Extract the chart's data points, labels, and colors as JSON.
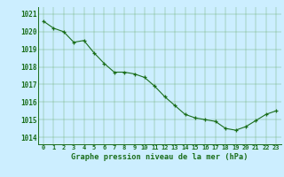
{
  "x": [
    0,
    1,
    2,
    3,
    4,
    5,
    6,
    7,
    8,
    9,
    10,
    11,
    12,
    13,
    14,
    15,
    16,
    17,
    18,
    19,
    20,
    21,
    22,
    23
  ],
  "y": [
    1020.6,
    1020.2,
    1020.0,
    1019.4,
    1019.5,
    1018.8,
    1018.2,
    1017.7,
    1017.7,
    1017.6,
    1017.4,
    1016.9,
    1016.3,
    1015.8,
    1015.3,
    1015.1,
    1015.0,
    1014.9,
    1014.5,
    1014.4,
    1014.6,
    1014.95,
    1015.3,
    1015.5
  ],
  "line_color": "#1a6e1a",
  "marker_color": "#1a6e1a",
  "bg_color": "#cceeff",
  "grid_color": "#66aa66",
  "axis_color": "#1a6e1a",
  "tick_color": "#1a6e1a",
  "xlabel": "Graphe pression niveau de la mer (hPa)",
  "ylim_min": 1013.6,
  "ylim_max": 1021.4,
  "yticks": [
    1014,
    1015,
    1016,
    1017,
    1018,
    1019,
    1020,
    1021
  ],
  "xticks": [
    0,
    1,
    2,
    3,
    4,
    5,
    6,
    7,
    8,
    9,
    10,
    11,
    12,
    13,
    14,
    15,
    16,
    17,
    18,
    19,
    20,
    21,
    22,
    23
  ],
  "xtick_fontsize": 5.0,
  "ytick_fontsize": 5.5,
  "xlabel_fontsize": 6.2
}
